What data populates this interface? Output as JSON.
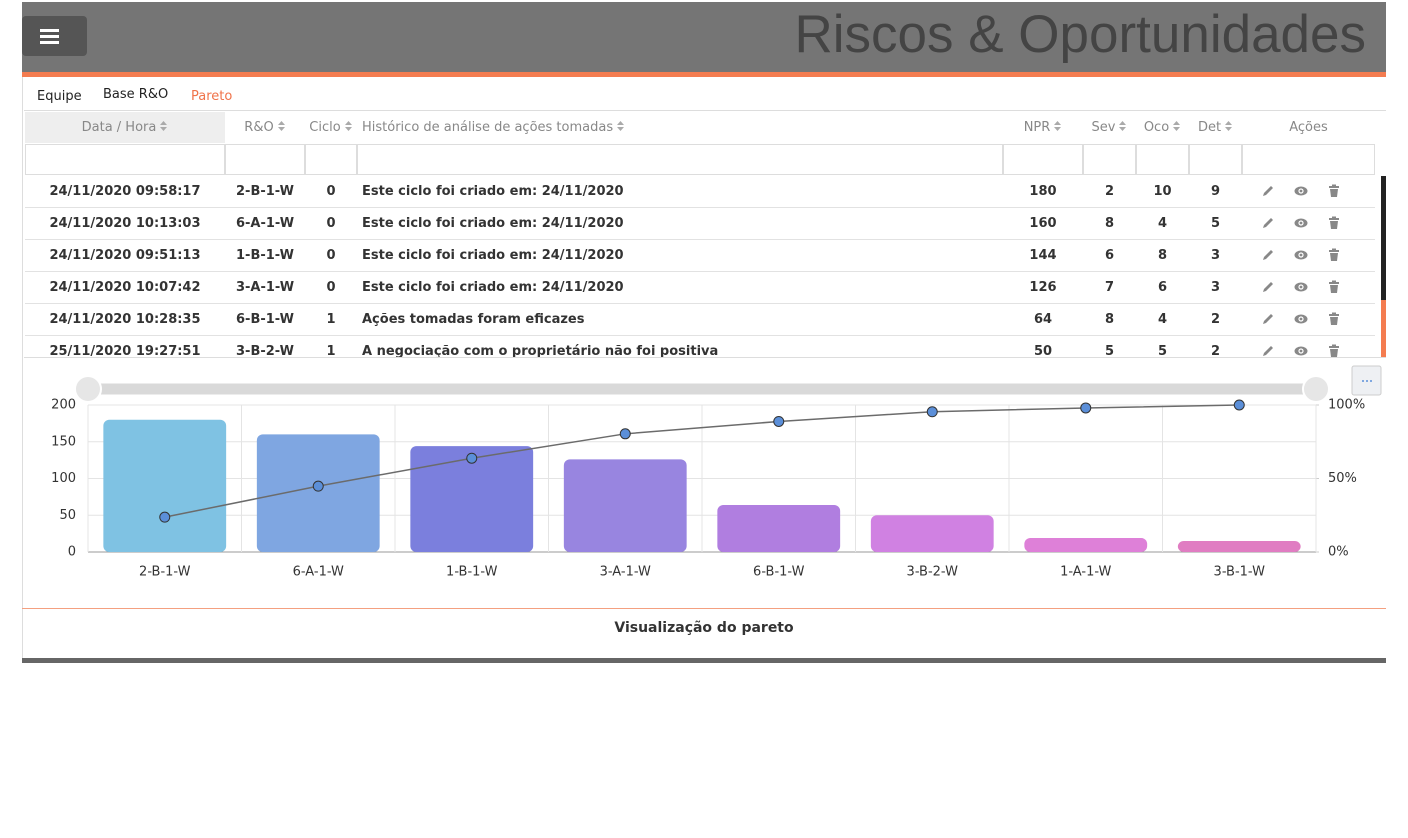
{
  "header": {
    "title": "Riscos & Oportunidades"
  },
  "tabs": [
    "Equipe",
    "Base R&O",
    "Pareto"
  ],
  "table": {
    "columns": [
      "Data / Hora",
      "R&O",
      "Ciclo",
      "Histórico de análise de ações tomadas",
      "NPR",
      "Sev",
      "Oco",
      "Det",
      "Ações"
    ],
    "rows": [
      [
        "24/11/2020 09:58:17",
        "2-B-1-W",
        0,
        "Este ciclo foi criado em: 24/11/2020",
        180,
        2,
        10,
        9
      ],
      [
        "24/11/2020 10:13:03",
        "6-A-1-W",
        0,
        "Este ciclo foi criado em: 24/11/2020",
        160,
        8,
        4,
        5
      ],
      [
        "24/11/2020 09:51:13",
        "1-B-1-W",
        0,
        "Este ciclo foi criado em: 24/11/2020",
        144,
        6,
        8,
        3
      ],
      [
        "24/11/2020 10:07:42",
        "3-A-1-W",
        0,
        "Este ciclo foi criado em: 24/11/2020",
        126,
        7,
        6,
        3
      ],
      [
        "24/11/2020 10:28:35",
        "6-B-1-W",
        1,
        "Ações tomadas foram eficazes",
        64,
        8,
        4,
        2
      ],
      [
        "25/11/2020 19:27:51",
        "3-B-2-W",
        1,
        "A negociação com o proprietário não foi positiva",
        50,
        5,
        5,
        2
      ]
    ]
  },
  "chart_data": {
    "type": "pareto",
    "categories": [
      "2-B-1-W",
      "6-A-1-W",
      "1-B-1-W",
      "3-A-1-W",
      "6-B-1-W",
      "3-B-2-W",
      "1-A-1-W",
      "3-B-1-W"
    ],
    "values": [
      180,
      160,
      144,
      126,
      64,
      50,
      19,
      15
    ],
    "colors": [
      "#7fc2e3",
      "#7fa6e1",
      "#7b7fdd",
      "#9885e0",
      "#b07ee0",
      "#d081e2",
      "#de80d8",
      "#e07dc2"
    ],
    "line": {
      "axis": "y2",
      "color": "#6b6b6b",
      "marker_color": "#5b8fd9",
      "values": [
        23.7,
        44.8,
        63.8,
        80.4,
        88.8,
        95.4,
        98.0,
        100
      ]
    },
    "ylim": [
      0,
      200
    ],
    "yticks": [
      0,
      50,
      100,
      150,
      200
    ],
    "y2lim": [
      0,
      100
    ],
    "y2ticks": [
      {
        "value": 0,
        "label": "0%"
      },
      {
        "value": 50,
        "label": "50%"
      },
      {
        "value": 100,
        "label": "100%"
      }
    ],
    "grid": true
  },
  "footer": {
    "caption": "Visualização do pareto"
  }
}
